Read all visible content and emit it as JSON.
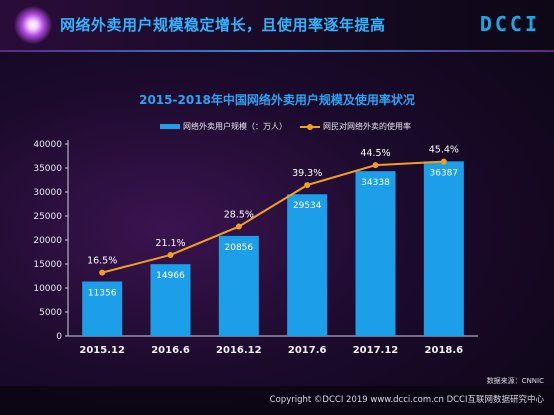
{
  "header": {
    "title": "网络外卖用户规模稳定增长，且使用率逐年提高",
    "logo": "DCCI"
  },
  "chart_data": {
    "type": "bar",
    "title": "2015-2018年中国网络外卖用户规模及使用率状况",
    "categories": [
      "2015.12",
      "2016.6",
      "2016.12",
      "2017.6",
      "2017.12",
      "2018.6"
    ],
    "series": [
      {
        "name": "网络外卖用户规模（：万人）",
        "type": "bar",
        "values": [
          11356,
          14966,
          20856,
          29534,
          34338,
          36387
        ],
        "labels": [
          "11356",
          "14966",
          "20856",
          "29534",
          "34338",
          "36387"
        ],
        "color": "#1c9ee8"
      },
      {
        "name": "网民对网络外卖的使用率",
        "type": "line",
        "values": [
          16.5,
          21.1,
          28.5,
          39.3,
          44.5,
          45.4
        ],
        "labels": [
          "16.5%",
          "21.1%",
          "28.5%",
          "39.3%",
          "44.5%",
          "45.4%"
        ],
        "color": "#f0a020"
      }
    ],
    "y_ticks": [
      "0",
      "5000",
      "10000",
      "15000",
      "20000",
      "25000",
      "30000",
      "35000",
      "40000"
    ],
    "ylim": [
      0,
      40000
    ],
    "y2lim": [
      0,
      50
    ],
    "grid": false,
    "legend_position": "top-left"
  },
  "footer": {
    "source": "数据来源：CNNIC",
    "copyright": "Copyright ©DCCI 2019  www.dcci.com.cn  DCCI互联网数据研究中心"
  }
}
